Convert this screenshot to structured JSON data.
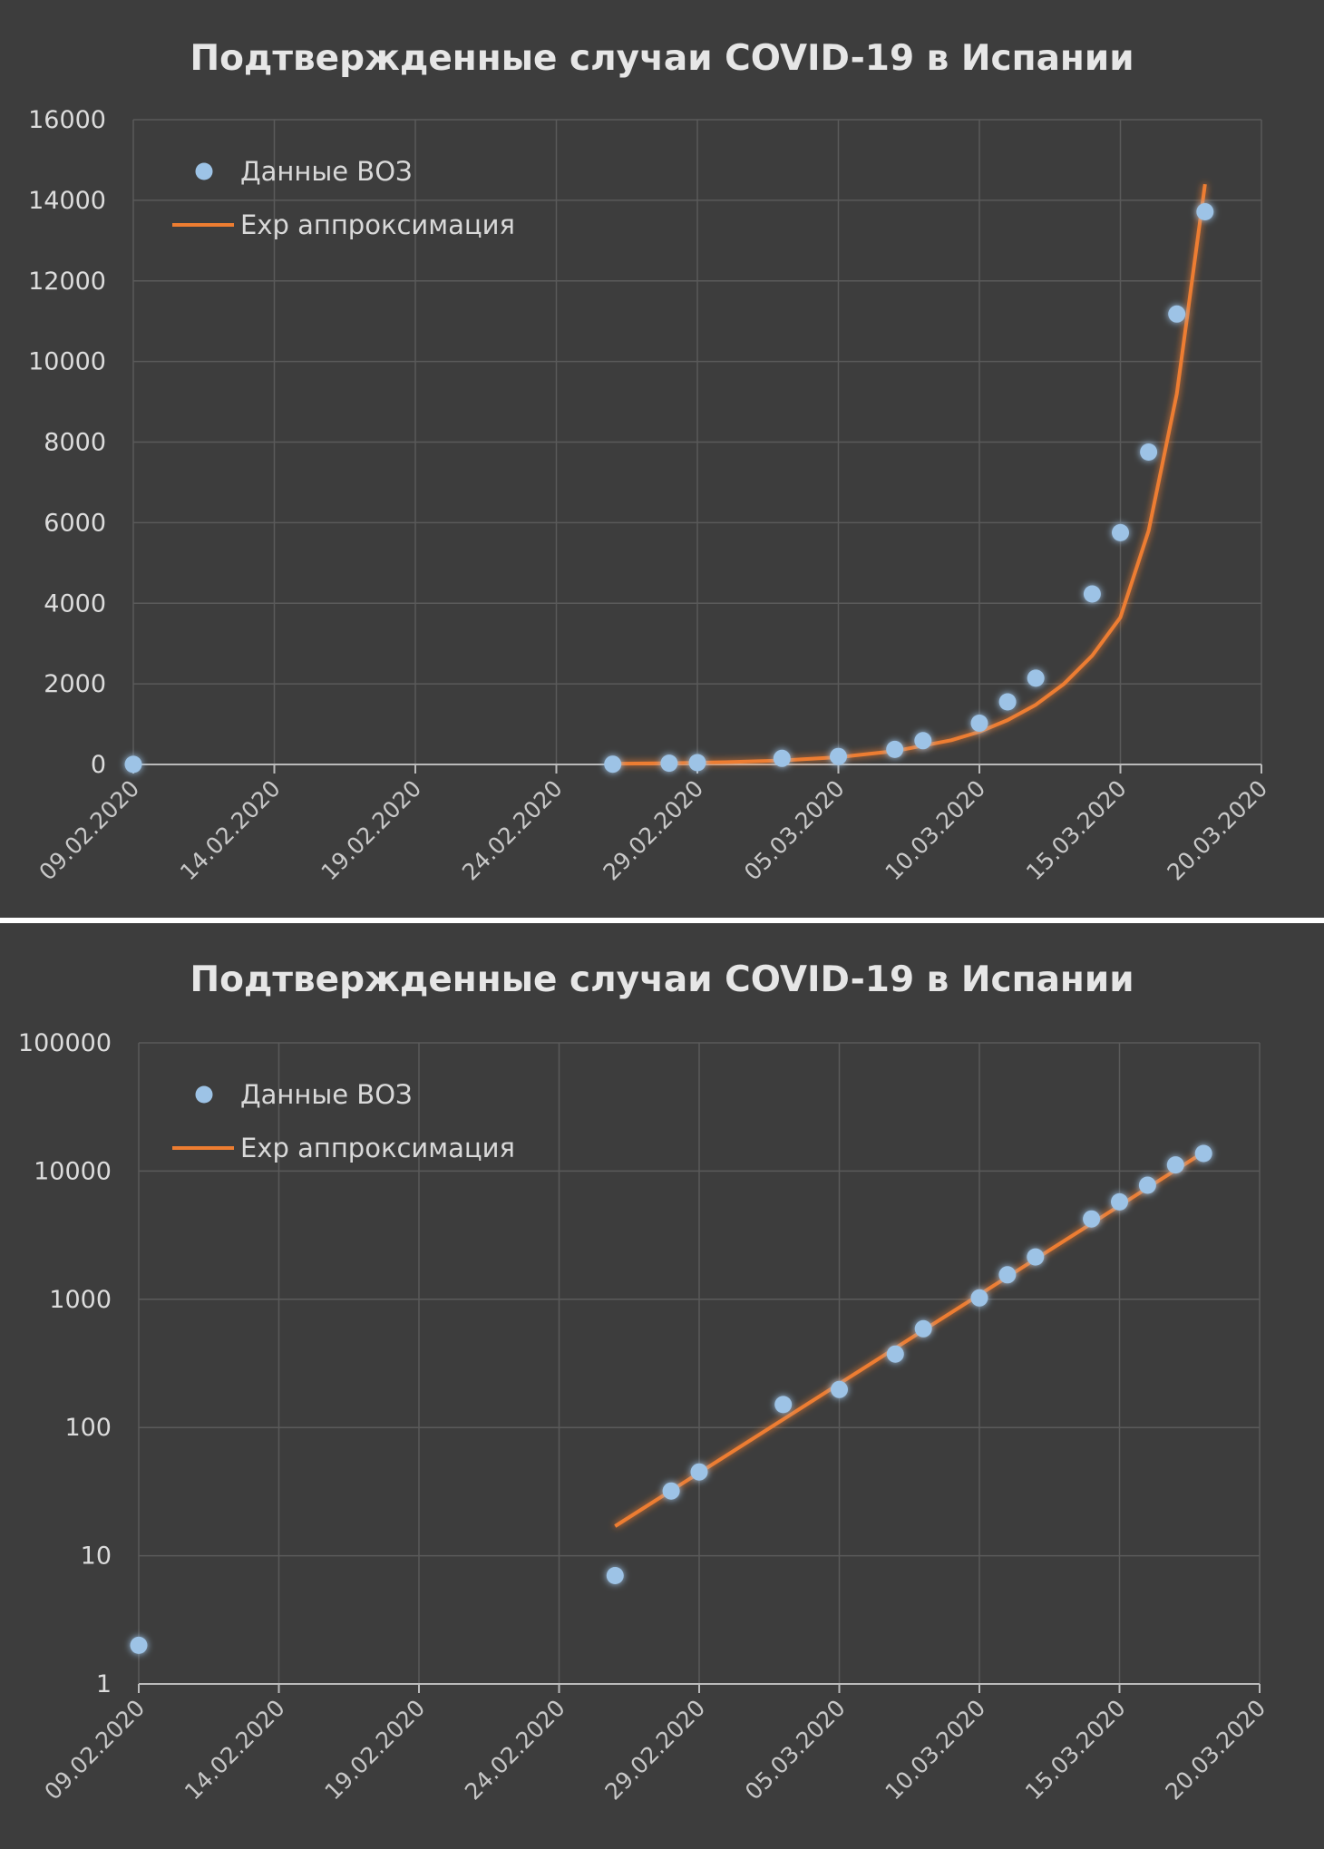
{
  "colors": {
    "background": "#3d3d3d",
    "grid": "#5a5a5a",
    "points": "#9dc3e6",
    "fit_line": "#ed7d31",
    "text": "#dcdcdc"
  },
  "chart_data": [
    {
      "type": "scatter",
      "title": "Подтвержденные случаи COVID-19 в Испании",
      "xlabel": "",
      "ylabel": "",
      "x_tick_labels": [
        "09.02.2020",
        "14.02.2020",
        "19.02.2020",
        "24.02.2020",
        "29.02.2020",
        "05.03.2020",
        "10.03.2020",
        "15.03.2020",
        "20.03.2020"
      ],
      "y_tick_labels": [
        "0",
        "2000",
        "4000",
        "6000",
        "8000",
        "10000",
        "12000",
        "14000",
        "16000"
      ],
      "ylim": [
        0,
        16000
      ],
      "y_scale": "linear",
      "grid": true,
      "legend": "top-left",
      "series": [
        {
          "name": "Данные ВОЗ",
          "kind": "points",
          "x": [
            "2020-02-09",
            "2020-02-26",
            "2020-02-28",
            "2020-02-29",
            "2020-03-03",
            "2020-03-05",
            "2020-03-07",
            "2020-03-08",
            "2020-03-10",
            "2020-03-11",
            "2020-03-12",
            "2020-03-14",
            "2020-03-15",
            "2020-03-16",
            "2020-03-17",
            "2020-03-18"
          ],
          "y": [
            2,
            7,
            32,
            45,
            151,
            198,
            374,
            589,
            1024,
            1552,
            2140,
            4231,
            5753,
            7753,
            11178,
            13716
          ]
        },
        {
          "name": "Exp аппроксимация",
          "kind": "line",
          "x": [
            "2020-02-26",
            "2020-02-28",
            "2020-03-01",
            "2020-03-03",
            "2020-03-05",
            "2020-03-07",
            "2020-03-09",
            "2020-03-10",
            "2020-03-11",
            "2020-03-12",
            "2020-03-13",
            "2020-03-14",
            "2020-03-15",
            "2020-03-16",
            "2020-03-17",
            "2020-03-18"
          ],
          "y": [
            17,
            31,
            56,
            100,
            180,
            330,
            600,
            810,
            1100,
            1480,
            2000,
            2700,
            3650,
            5800,
            9200,
            14400
          ]
        }
      ]
    },
    {
      "type": "scatter",
      "title": "Подтвержденные случаи COVID-19 в Испании",
      "xlabel": "",
      "ylabel": "",
      "x_tick_labels": [
        "09.02.2020",
        "14.02.2020",
        "19.02.2020",
        "24.02.2020",
        "29.02.2020",
        "05.03.2020",
        "10.03.2020",
        "15.03.2020",
        "20.03.2020"
      ],
      "y_tick_labels": [
        "1",
        "10",
        "100",
        "1000",
        "10000",
        "100000"
      ],
      "ylim": [
        1,
        100000
      ],
      "y_scale": "log",
      "grid": true,
      "legend": "top-left",
      "series": [
        {
          "name": "Данные ВОЗ",
          "kind": "points",
          "x": [
            "2020-02-09",
            "2020-02-26",
            "2020-02-28",
            "2020-02-29",
            "2020-03-03",
            "2020-03-05",
            "2020-03-07",
            "2020-03-08",
            "2020-03-10",
            "2020-03-11",
            "2020-03-12",
            "2020-03-14",
            "2020-03-15",
            "2020-03-16",
            "2020-03-17",
            "2020-03-18"
          ],
          "y": [
            2,
            7,
            32,
            45,
            151,
            198,
            374,
            589,
            1024,
            1552,
            2140,
            4231,
            5753,
            7753,
            11178,
            13716
          ]
        },
        {
          "name": "Exp аппроксимация",
          "kind": "line",
          "x": [
            "2020-02-26",
            "2020-03-18"
          ],
          "y": [
            17,
            14000
          ]
        }
      ]
    }
  ]
}
